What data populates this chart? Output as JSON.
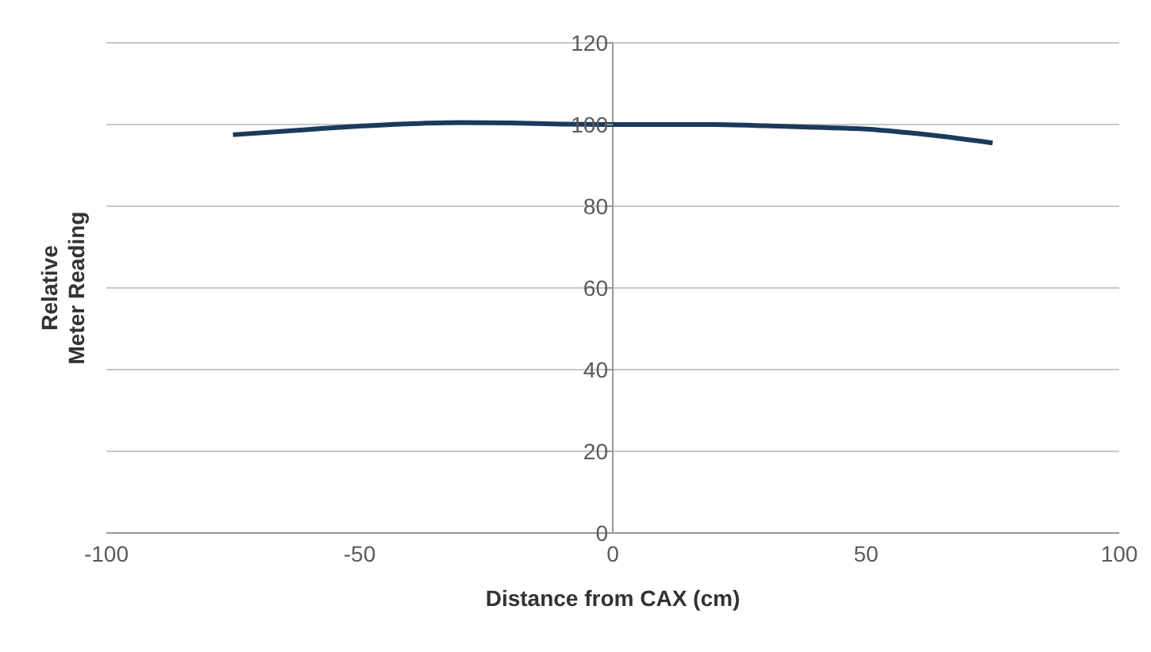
{
  "chart_data": {
    "type": "line",
    "xlabel": "Distance from CAX (cm)",
    "ylabel": "Relative Meter Reading",
    "x": [
      -75,
      -60,
      -50,
      -40,
      -30,
      -20,
      -10,
      0,
      10,
      20,
      30,
      40,
      50,
      60,
      75
    ],
    "series": [
      {
        "color": "#1b3a5c",
        "values": [
          97.5,
          98.8,
          99.6,
          100.2,
          100.5,
          100.4,
          100.1,
          100,
          100,
          100,
          99.7,
          99.3,
          98.9,
          97.8,
          95.5
        ]
      }
    ],
    "xlim": [
      -100,
      100
    ],
    "xticks": [
      -100,
      -50,
      0,
      50,
      100
    ],
    "ylim": [
      0,
      120
    ],
    "yticks": [
      0,
      20,
      40,
      60,
      80,
      100,
      120
    ],
    "grid": "y",
    "legend": false,
    "marker": "none",
    "line_style": "solid"
  }
}
